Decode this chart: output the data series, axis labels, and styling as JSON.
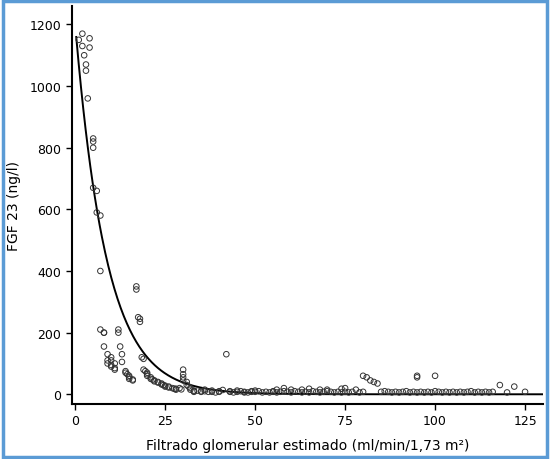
{
  "xlabel": "Filtrado glomerular estimado (ml/min/1,73 m²)",
  "ylabel": "FGF 23 (ng/l)",
  "xlim": [
    -1,
    130
  ],
  "ylim": [
    -30,
    1260
  ],
  "xticks": [
    0,
    25,
    50,
    75,
    100,
    125
  ],
  "yticks": [
    0,
    200,
    400,
    600,
    800,
    1000,
    1200
  ],
  "background_color": "#ffffff",
  "border_color": "#5b9bd5",
  "scatter_color": "#333333",
  "curve_color": "#000000",
  "scatter_points": [
    [
      1,
      1150
    ],
    [
      2,
      1170
    ],
    [
      2,
      1130
    ],
    [
      2.5,
      1100
    ],
    [
      3,
      1070
    ],
    [
      3,
      1050
    ],
    [
      3.5,
      960
    ],
    [
      4,
      1155
    ],
    [
      4,
      1125
    ],
    [
      5,
      830
    ],
    [
      5,
      820
    ],
    [
      5,
      800
    ],
    [
      5,
      670
    ],
    [
      6,
      660
    ],
    [
      6,
      590
    ],
    [
      7,
      580
    ],
    [
      7,
      400
    ],
    [
      7,
      210
    ],
    [
      8,
      200
    ],
    [
      8,
      200
    ],
    [
      8,
      155
    ],
    [
      9,
      130
    ],
    [
      9,
      110
    ],
    [
      9,
      100
    ],
    [
      10,
      120
    ],
    [
      10,
      110
    ],
    [
      10,
      95
    ],
    [
      10,
      90
    ],
    [
      11,
      100
    ],
    [
      11,
      85
    ],
    [
      11,
      80
    ],
    [
      12,
      210
    ],
    [
      12,
      200
    ],
    [
      12.5,
      155
    ],
    [
      13,
      130
    ],
    [
      13,
      105
    ],
    [
      14,
      75
    ],
    [
      14,
      70
    ],
    [
      14.5,
      65
    ],
    [
      15,
      60
    ],
    [
      15,
      55
    ],
    [
      15,
      50
    ],
    [
      16,
      48
    ],
    [
      16,
      45
    ],
    [
      17,
      350
    ],
    [
      17,
      340
    ],
    [
      17.5,
      250
    ],
    [
      18,
      245
    ],
    [
      18,
      235
    ],
    [
      18.5,
      120
    ],
    [
      19,
      115
    ],
    [
      19,
      80
    ],
    [
      19.5,
      75
    ],
    [
      20,
      70
    ],
    [
      20,
      65
    ],
    [
      20,
      60
    ],
    [
      21,
      55
    ],
    [
      21,
      50
    ],
    [
      21.5,
      48
    ],
    [
      22,
      45
    ],
    [
      22,
      42
    ],
    [
      23,
      40
    ],
    [
      23,
      38
    ],
    [
      24,
      35
    ],
    [
      24,
      32
    ],
    [
      24.5,
      30
    ],
    [
      25,
      28
    ],
    [
      25,
      25
    ],
    [
      26,
      25
    ],
    [
      26,
      22
    ],
    [
      27,
      20
    ],
    [
      27.5,
      18
    ],
    [
      28,
      15
    ],
    [
      28,
      18
    ],
    [
      29,
      20
    ],
    [
      29.5,
      16
    ],
    [
      30,
      80
    ],
    [
      30,
      65
    ],
    [
      30,
      55
    ],
    [
      30,
      45
    ],
    [
      31,
      40
    ],
    [
      31,
      30
    ],
    [
      31.5,
      25
    ],
    [
      32,
      20
    ],
    [
      32,
      15
    ],
    [
      33,
      12
    ],
    [
      33,
      10
    ],
    [
      33,
      8
    ],
    [
      34,
      12
    ],
    [
      35,
      10
    ],
    [
      35,
      8
    ],
    [
      36,
      15
    ],
    [
      36,
      10
    ],
    [
      37,
      8
    ],
    [
      38,
      12
    ],
    [
      38,
      8
    ],
    [
      39,
      6
    ],
    [
      40,
      10
    ],
    [
      40,
      8
    ],
    [
      41,
      14
    ],
    [
      42,
      130
    ],
    [
      43,
      10
    ],
    [
      43,
      8
    ],
    [
      44,
      6
    ],
    [
      45,
      12
    ],
    [
      45,
      8
    ],
    [
      46,
      10
    ],
    [
      47,
      8
    ],
    [
      47,
      6
    ],
    [
      48,
      6
    ],
    [
      49,
      10
    ],
    [
      49,
      8
    ],
    [
      50,
      12
    ],
    [
      50,
      8
    ],
    [
      51,
      10
    ],
    [
      52,
      6
    ],
    [
      53,
      8
    ],
    [
      54,
      6
    ],
    [
      55,
      10
    ],
    [
      55,
      8
    ],
    [
      56,
      15
    ],
    [
      56,
      6
    ],
    [
      57,
      8
    ],
    [
      58,
      20
    ],
    [
      58,
      10
    ],
    [
      59,
      8
    ],
    [
      60,
      15
    ],
    [
      60,
      6
    ],
    [
      61,
      10
    ],
    [
      62,
      8
    ],
    [
      63,
      15
    ],
    [
      63,
      6
    ],
    [
      64,
      8
    ],
    [
      65,
      18
    ],
    [
      65,
      6
    ],
    [
      66,
      10
    ],
    [
      67,
      8
    ],
    [
      68,
      15
    ],
    [
      68,
      6
    ],
    [
      69,
      8
    ],
    [
      70,
      10
    ],
    [
      70,
      15
    ],
    [
      71,
      8
    ],
    [
      72,
      6
    ],
    [
      73,
      8
    ],
    [
      74,
      18
    ],
    [
      74,
      6
    ],
    [
      75,
      20
    ],
    [
      75,
      8
    ],
    [
      76,
      6
    ],
    [
      77,
      8
    ],
    [
      78,
      15
    ],
    [
      79,
      6
    ],
    [
      80,
      8
    ],
    [
      80,
      60
    ],
    [
      81,
      55
    ],
    [
      82,
      45
    ],
    [
      83,
      40
    ],
    [
      84,
      35
    ],
    [
      85,
      8
    ],
    [
      86,
      10
    ],
    [
      87,
      8
    ],
    [
      88,
      6
    ],
    [
      89,
      8
    ],
    [
      90,
      6
    ],
    [
      91,
      8
    ],
    [
      92,
      10
    ],
    [
      93,
      6
    ],
    [
      94,
      8
    ],
    [
      95,
      6
    ],
    [
      95,
      60
    ],
    [
      95,
      55
    ],
    [
      96,
      8
    ],
    [
      97,
      6
    ],
    [
      98,
      8
    ],
    [
      99,
      6
    ],
    [
      100,
      60
    ],
    [
      100,
      10
    ],
    [
      101,
      8
    ],
    [
      102,
      6
    ],
    [
      103,
      8
    ],
    [
      104,
      6
    ],
    [
      105,
      8
    ],
    [
      106,
      6
    ],
    [
      107,
      8
    ],
    [
      108,
      6
    ],
    [
      109,
      8
    ],
    [
      110,
      10
    ],
    [
      111,
      6
    ],
    [
      112,
      8
    ],
    [
      113,
      6
    ],
    [
      114,
      8
    ],
    [
      115,
      6
    ],
    [
      116,
      8
    ],
    [
      118,
      30
    ],
    [
      120,
      6
    ],
    [
      122,
      25
    ],
    [
      125,
      8
    ]
  ],
  "curve_a": 1200,
  "curve_b": 0.115
}
